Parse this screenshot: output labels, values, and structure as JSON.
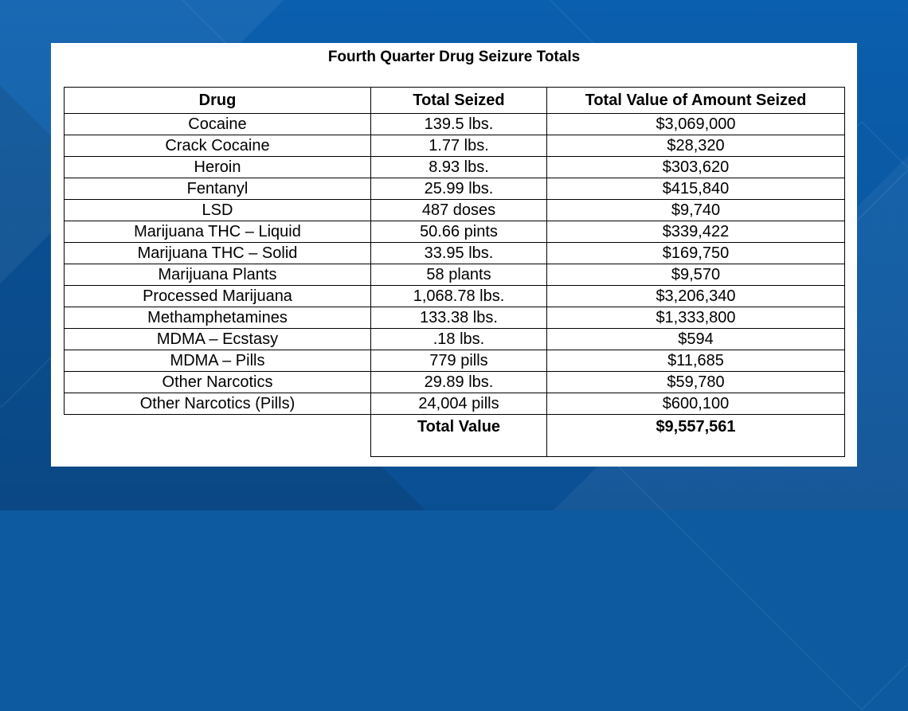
{
  "title": "Fourth Quarter Drug Seizure Totals",
  "table": {
    "headers": [
      "Drug",
      "Total Seized",
      "Total Value of Amount Seized"
    ],
    "rows": [
      [
        "Cocaine",
        "139.5 lbs.",
        "$3,069,000"
      ],
      [
        "Crack Cocaine",
        "1.77 lbs.",
        "$28,320"
      ],
      [
        "Heroin",
        "8.93 lbs.",
        "$303,620"
      ],
      [
        "Fentanyl",
        "25.99 lbs.",
        "$415,840"
      ],
      [
        "LSD",
        "487 doses",
        "$9,740"
      ],
      [
        "Marijuana THC – Liquid",
        "50.66 pints",
        "$339,422"
      ],
      [
        "Marijuana THC – Solid",
        "33.95 lbs.",
        "$169,750"
      ],
      [
        "Marijuana Plants",
        "58 plants",
        "$9,570"
      ],
      [
        "Processed Marijuana",
        "1,068.78 lbs.",
        "$3,206,340"
      ],
      [
        "Methamphetamines",
        "133.38 lbs.",
        "$1,333,800"
      ],
      [
        "MDMA – Ecstasy",
        ".18 lbs.",
        "$594"
      ],
      [
        "MDMA – Pills",
        "779 pills",
        "$11,685"
      ],
      [
        "Other Narcotics",
        "29.89 lbs.",
        "$59,780"
      ],
      [
        "Other Narcotics (Pills)",
        "24,004 pills",
        "$600,100"
      ]
    ],
    "total_label": "Total Value",
    "total_value": "$9,557,561"
  }
}
